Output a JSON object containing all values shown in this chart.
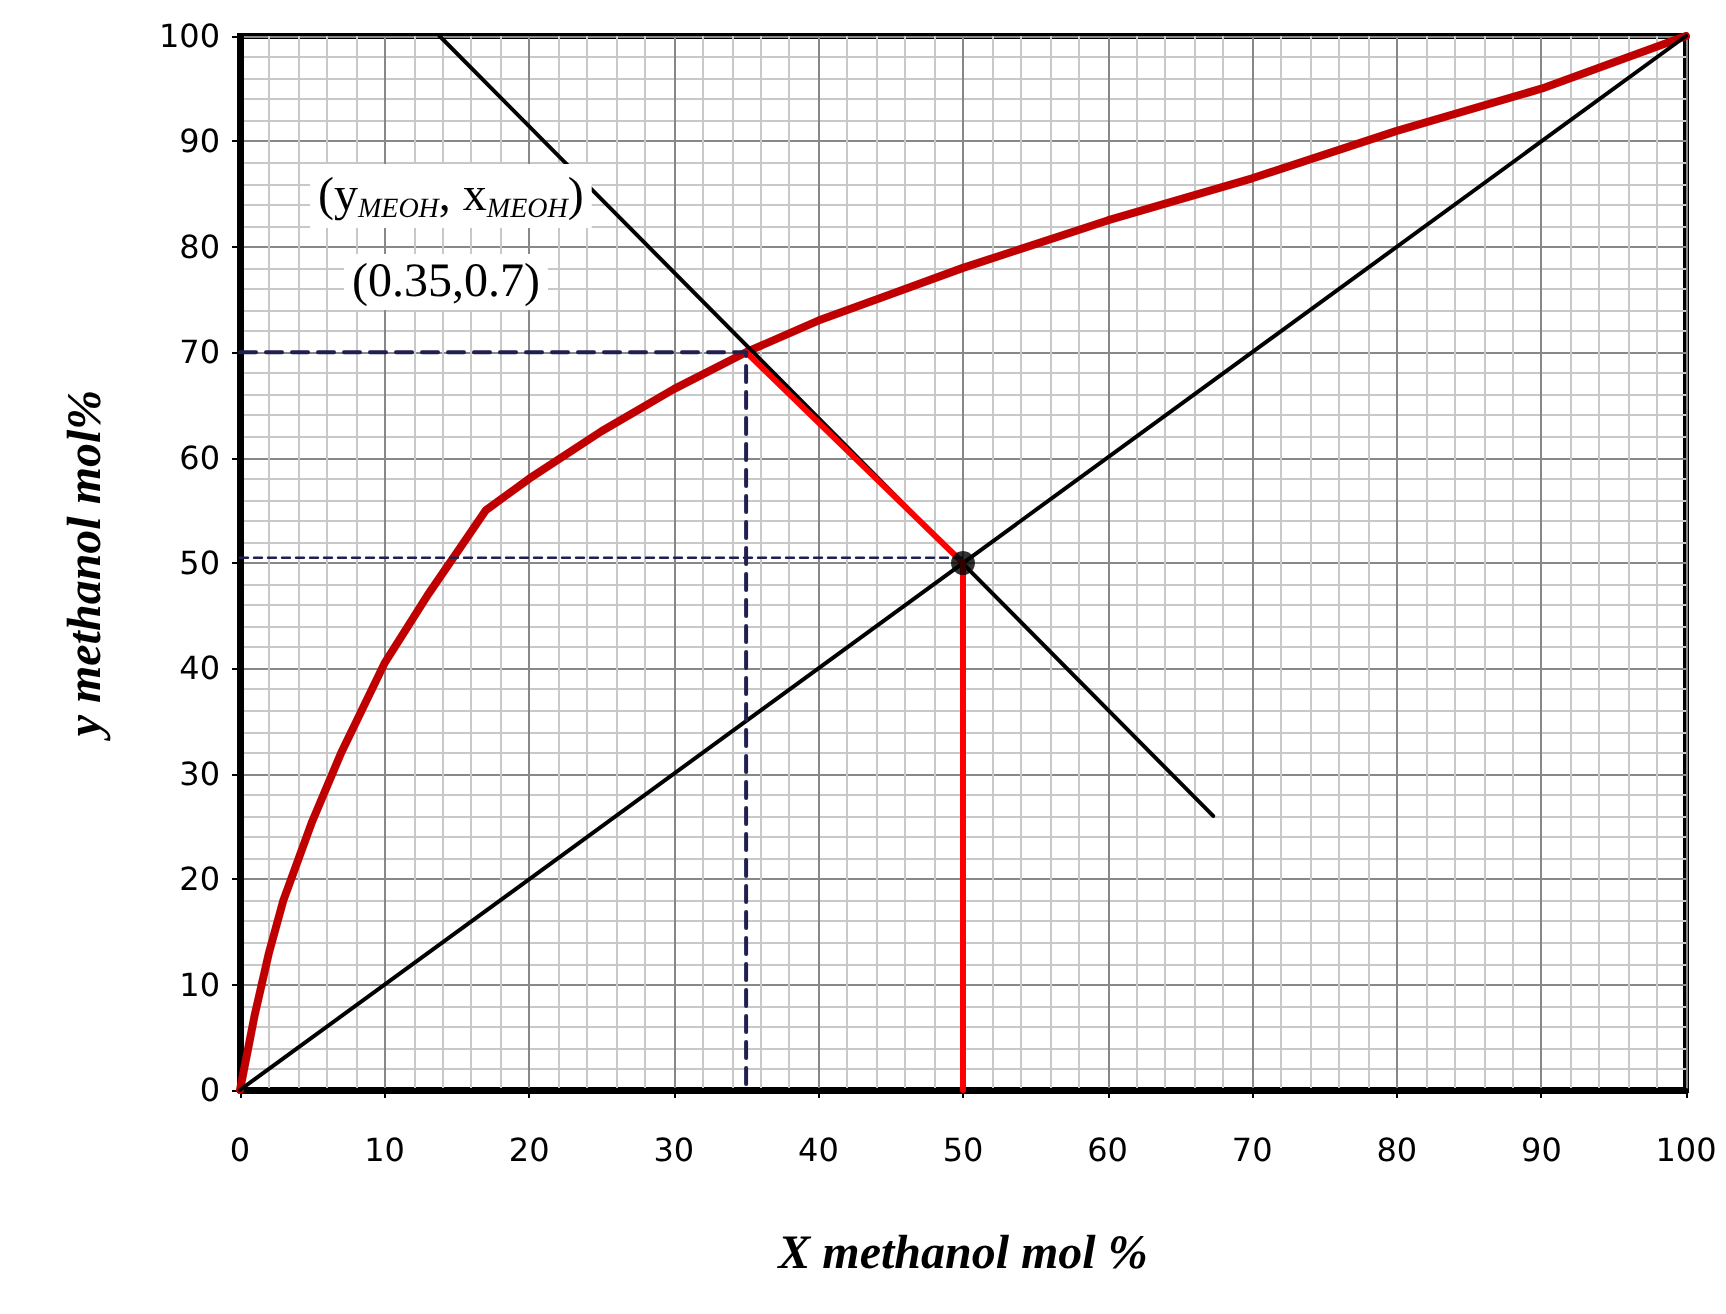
{
  "chart_data": {
    "type": "line",
    "xlabel": "X methanol mol %",
    "ylabel": "y methanol mol%",
    "xlim": [
      0,
      100
    ],
    "ylim": [
      0,
      100
    ],
    "xticks": [
      0,
      10,
      20,
      30,
      40,
      50,
      60,
      70,
      80,
      90,
      100
    ],
    "yticks": [
      0,
      10,
      20,
      30,
      40,
      50,
      60,
      70,
      80,
      90,
      100
    ],
    "grid": true,
    "marker": "none",
    "line_style": "solid",
    "annotations": [
      "(y$_{MEOH}$, x$_{MEOH}$)",
      "(0.35,0.7)"
    ],
    "series": [
      {
        "color": "#c00000",
        "x": [
          0,
          1,
          2,
          3,
          5,
          7,
          10,
          13,
          15,
          17,
          20,
          25,
          30,
          35,
          40,
          45,
          50,
          60,
          70,
          80,
          90,
          100
        ],
        "values": [
          0,
          7,
          13,
          18,
          25.5,
          32,
          40.5,
          47,
          51,
          55,
          58,
          62.5,
          66.5,
          70,
          73,
          75.5,
          78,
          82.5,
          86.5,
          91,
          95,
          100
        ]
      },
      {
        "color": "#000000",
        "x": [
          0,
          100
        ],
        "values": [
          0,
          100
        ]
      },
      {
        "color": "#000000",
        "x": [
          13.8,
          67.3
        ],
        "values": [
          100,
          26
        ]
      },
      {
        "color": "#ff0000",
        "x": [
          35,
          50,
          50
        ],
        "values": [
          70,
          50,
          0
        ]
      },
      {
        "color": "#1f2050",
        "line_style": "dashed",
        "x": [
          0,
          35,
          35
        ],
        "values": [
          70,
          70,
          0
        ]
      },
      {
        "color": "#1f2050",
        "line_style": "dotted",
        "x": [
          0,
          50
        ],
        "values": [
          50.5,
          50.5
        ]
      },
      {
        "type": "scatter",
        "marker": "circle",
        "color": "#000000",
        "x": [
          50
        ],
        "values": [
          50
        ]
      }
    ]
  }
}
